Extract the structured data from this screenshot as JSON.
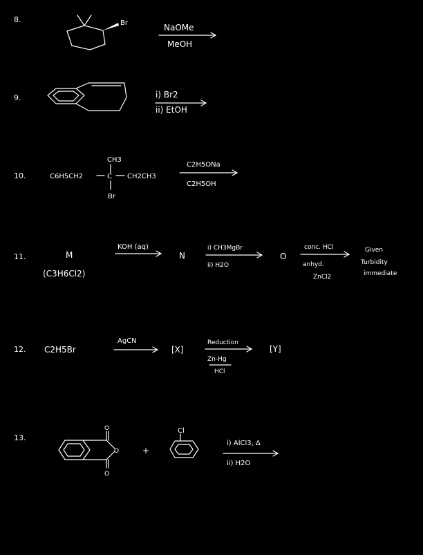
{
  "colors": {
    "background": "#000000",
    "ink": "#ffffff"
  },
  "q8": {
    "number": "8.",
    "substituent": "Br",
    "reagent_top": "NaOMe",
    "reagent_bottom": "MeOH"
  },
  "q9": {
    "number": "9.",
    "step1": "i) Br2",
    "step2": "ii) EtOH"
  },
  "q10": {
    "number": "10.",
    "top_group": "CH3",
    "left_group": "C6H5CH2",
    "center_atom": "C",
    "right_group": "CH2CH3",
    "bottom_group": "Br",
    "reagent_top": "C2H5ONa",
    "reagent_bottom": "C2H5OH"
  },
  "q11": {
    "number": "11.",
    "m_label": "M",
    "m_formula": "(C3H6Cl2)",
    "reagent1": "KOH (aq)",
    "n_label": "N",
    "reagent2_step1": "i) CH3MgBr",
    "reagent2_step2": "ii) H2O",
    "o_label": "O",
    "reagent3_top": "conc. HCl",
    "reagent3_bottom1": "anhyd.",
    "reagent3_bottom2": "ZnCl2",
    "result1": "Given",
    "result2": "Turbidity",
    "result3": "immediate"
  },
  "q12": {
    "number": "12.",
    "start": "C2H5Br",
    "reagent1": "AgCN",
    "x_label": "[X]",
    "reagent2_top": "Reduction",
    "reagent2_bottom1": "Zn-Hg",
    "reagent2_bottom2": "HCl",
    "y_label": "[Y]"
  },
  "q13": {
    "number": "13.",
    "plus": "+",
    "substituent": "Cl",
    "step1": "i) AlCl3, Δ",
    "step2": "ii) H2O"
  }
}
